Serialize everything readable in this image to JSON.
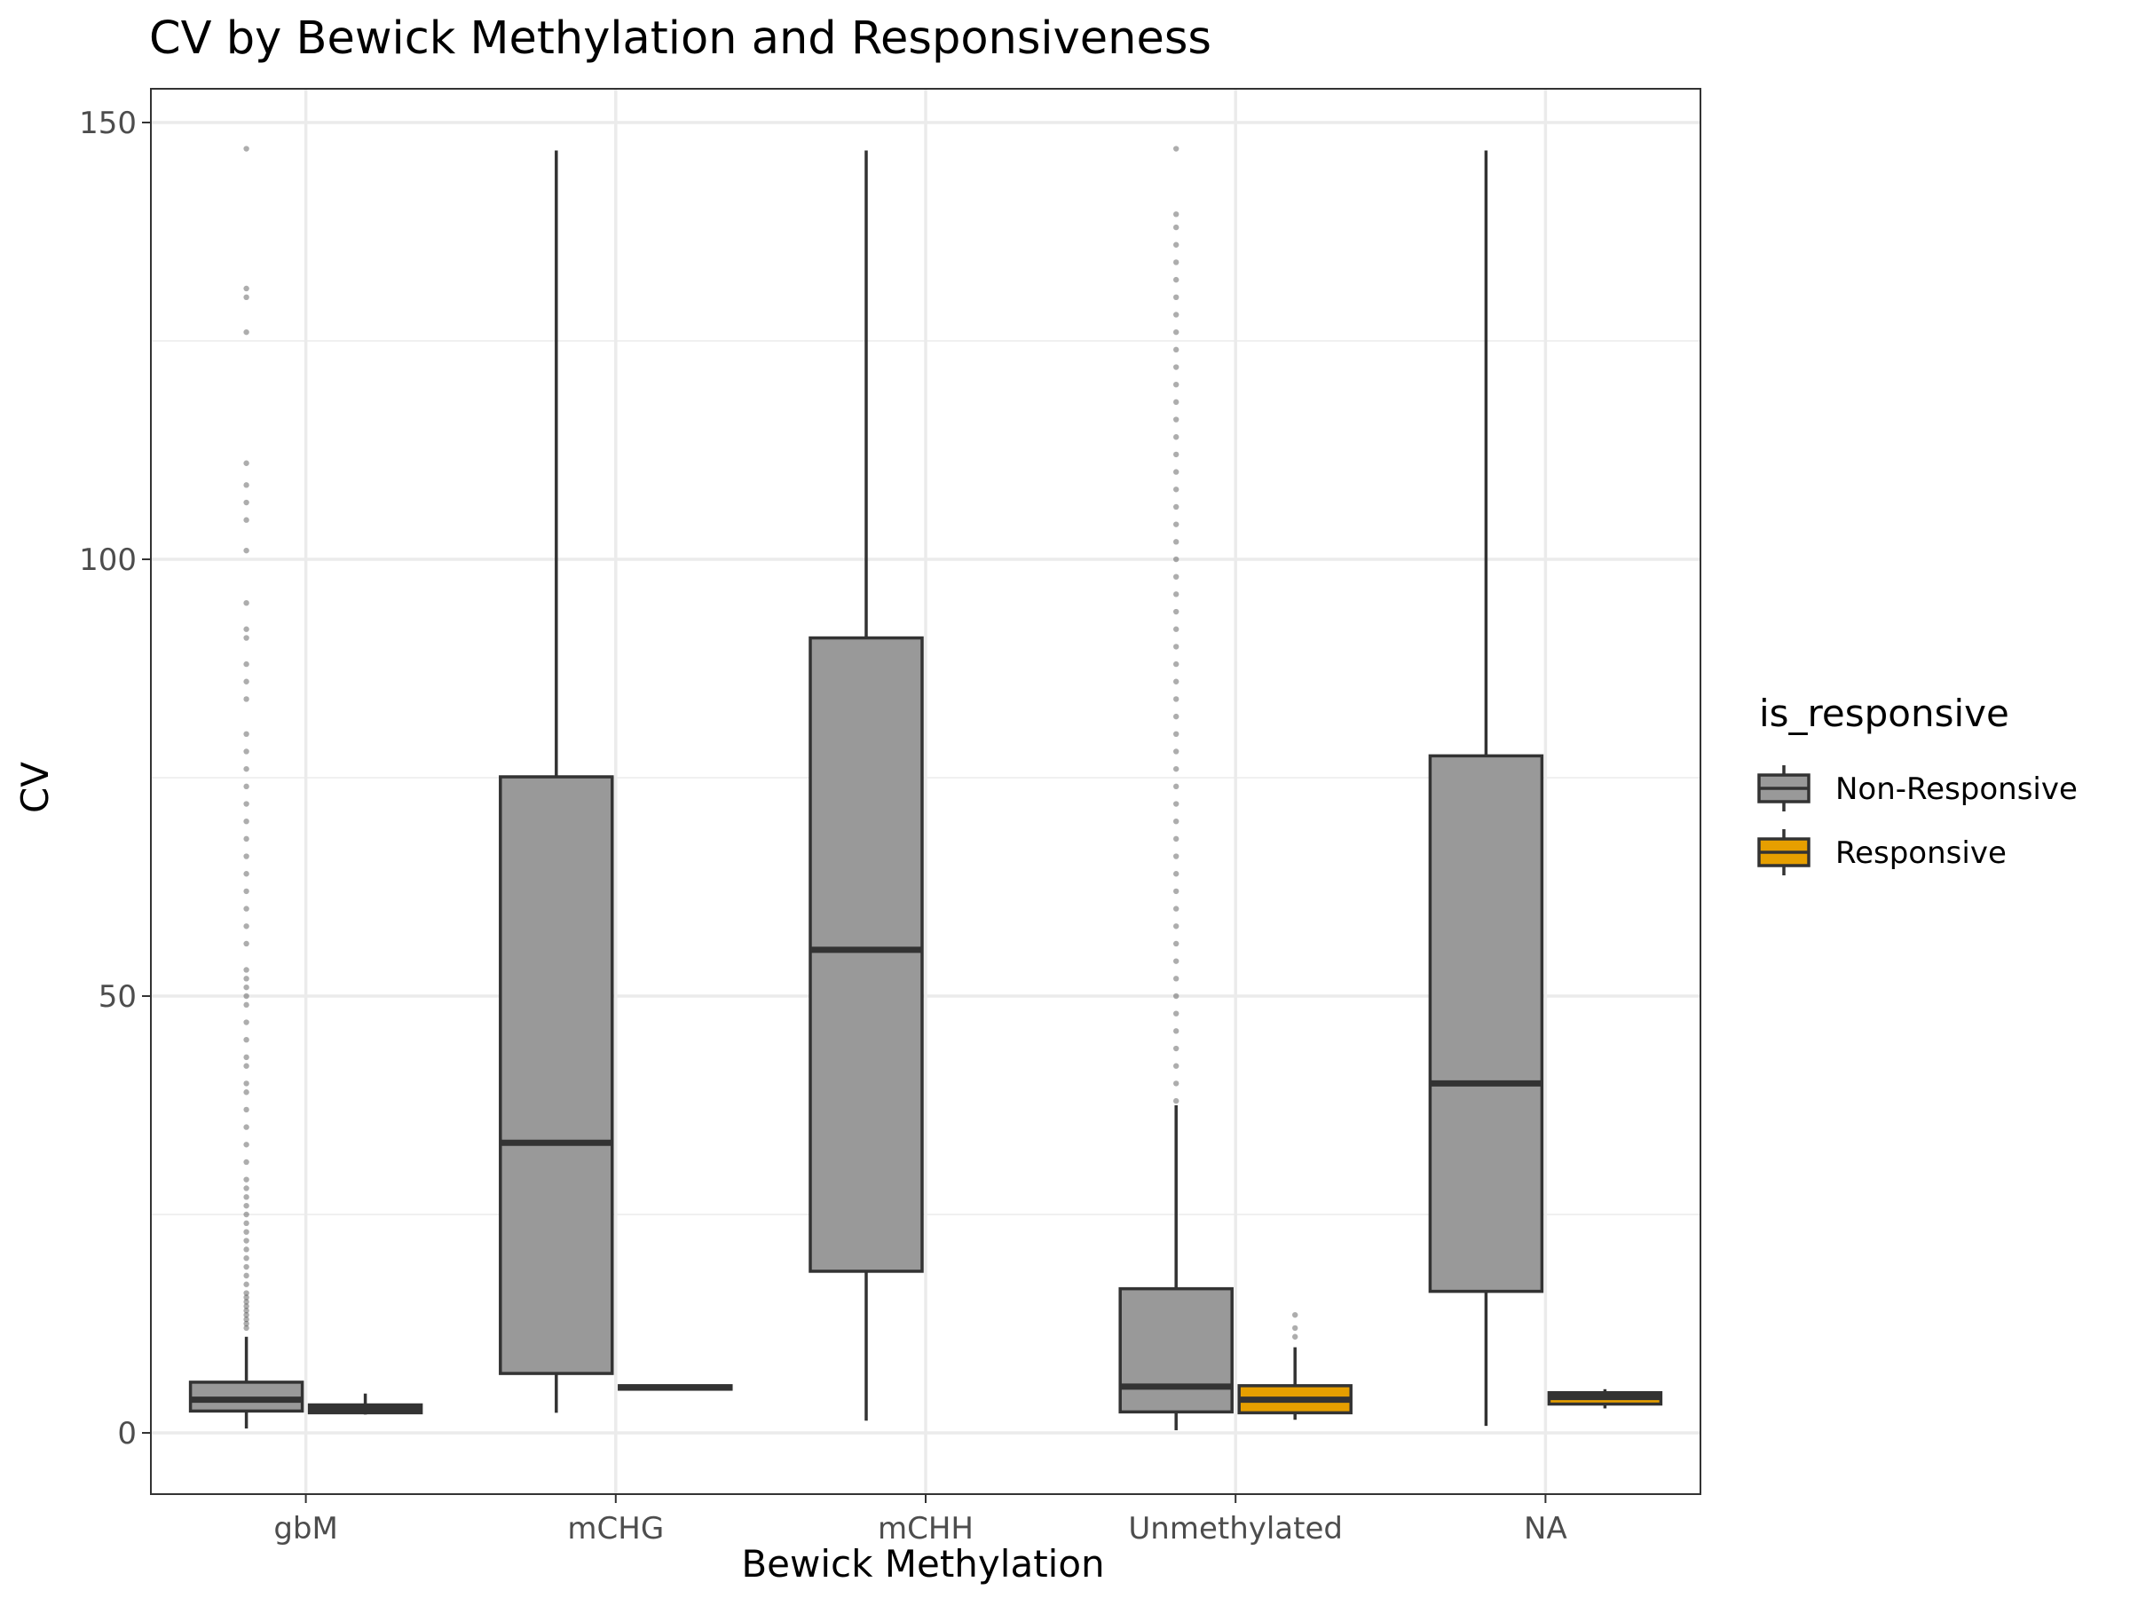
{
  "chart_data": {
    "type": "box",
    "title": "CV by Bewick Methylation and Responsiveness",
    "xlabel": "Bewick Methylation",
    "ylabel": "CV",
    "categories": [
      "gbM",
      "mCHG",
      "mCHH",
      "Unmethylated",
      "NA"
    ],
    "ylim": [
      -4,
      157
    ],
    "yticks": [
      0,
      50,
      100,
      150
    ],
    "grid": true,
    "legend": {
      "title": "is_responsive",
      "position": "right",
      "entries": [
        {
          "label": "Non-Responsive",
          "color": "#999999"
        },
        {
          "label": "Responsive",
          "color": "#E69F00"
        }
      ]
    },
    "series": [
      {
        "name": "Non-Responsive",
        "color": "#999999",
        "boxes": [
          {
            "category": "gbM",
            "min": 0.5,
            "q1": 2.5,
            "median": 3.8,
            "q3": 5.8,
            "max": 11,
            "outliers": [
              12,
              12.5,
              13,
              13.5,
              14,
              14.5,
              15,
              15.5,
              16,
              17,
              18,
              19,
              20,
              21,
              22,
              23,
              24,
              25,
              26,
              27,
              28,
              29,
              31,
              33,
              35,
              37,
              39,
              40,
              42,
              43,
              45,
              47,
              49,
              50,
              51,
              52,
              53,
              56,
              58,
              60,
              62,
              64,
              66,
              68,
              70,
              72,
              74,
              76,
              78,
              80,
              84,
              86,
              88,
              91,
              92,
              95,
              101,
              104.5,
              106.5,
              108.5,
              111,
              126,
              130,
              131,
              147
            ]
          },
          {
            "category": "mCHG",
            "min": 2.3,
            "q1": 6.8,
            "median": 33.2,
            "q3": 75.1,
            "max": 146.8,
            "outliers": []
          },
          {
            "category": "mCHH",
            "min": 1.4,
            "q1": 18.5,
            "median": 55.3,
            "q3": 91,
            "max": 146.8,
            "outliers": []
          },
          {
            "category": "Unmethylated",
            "min": 0.3,
            "q1": 2.4,
            "median": 5.3,
            "q3": 16.5,
            "max": 37.5,
            "outliers": [
              38,
              40,
              42,
              44,
              46,
              48,
              50,
              52,
              54,
              56,
              58,
              60,
              62,
              64,
              66,
              68,
              70,
              72,
              74,
              76,
              78,
              80,
              82,
              84,
              86,
              88,
              90,
              92,
              94,
              96,
              98,
              100,
              102,
              104,
              106,
              108,
              110,
              112,
              114,
              116,
              118,
              120,
              122,
              124,
              126,
              128,
              130,
              132,
              134,
              136,
              138,
              139.5,
              147
            ]
          },
          {
            "category": "NA",
            "min": 0.8,
            "q1": 16.2,
            "median": 40,
            "q3": 77.5,
            "max": 146.8,
            "outliers": []
          }
        ]
      },
      {
        "name": "Responsive",
        "color": "#E69F00",
        "boxes": [
          {
            "category": "gbM",
            "min": 2.1,
            "q1": 2.3,
            "median": 2.8,
            "q3": 3.2,
            "max": 4.5,
            "outliers": []
          },
          {
            "category": "mCHG",
            "min": 5,
            "q1": 5,
            "median": 5.2,
            "q3": 5.4,
            "max": 5.4,
            "outliers": []
          },
          {
            "category": "Unmethylated",
            "min": 1.5,
            "q1": 2.3,
            "median": 3.8,
            "q3": 5.4,
            "max": 9.8,
            "outliers": [
              11,
              12,
              13.5
            ]
          },
          {
            "category": "NA",
            "min": 2.8,
            "q1": 3.3,
            "median": 4.1,
            "q3": 4.6,
            "max": 5,
            "outliers": []
          }
        ]
      }
    ]
  }
}
